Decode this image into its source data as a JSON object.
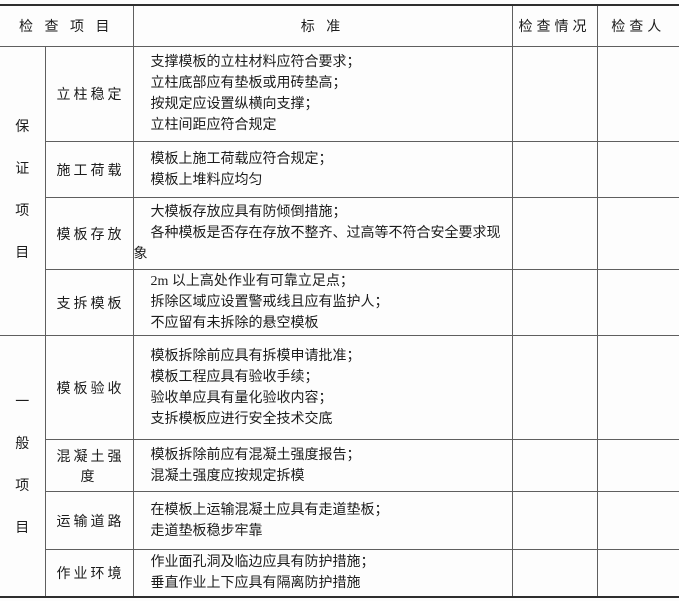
{
  "table": {
    "headers": {
      "item": "检 查 项 目",
      "standard": "标 准",
      "status": "检查情况",
      "inspector": "检查人"
    },
    "sections": [
      {
        "group": "保证项目",
        "rows": [
          {
            "item": "立柱稳定",
            "standards": [
              "支撑模板的立柱材料应符合要求；",
              "立柱底部应有垫板或用砖垫高；",
              "按规定应设置纵横向支撑；",
              "立柱间距应符合规定"
            ]
          },
          {
            "item": "施工荷载",
            "standards": [
              "模板上施工荷载应符合规定；",
              "模板上堆料应均匀"
            ]
          },
          {
            "item": "模板存放",
            "standards": [
              "大模板存放应具有防倾倒措施；",
              "各种模板是否存在存放不整齐、过高等不符合安全要求现象"
            ]
          },
          {
            "item": "支拆模板",
            "standards": [
              "2m 以上高处作业有可靠立足点；",
              "拆除区域应设置警戒线且应有监护人；",
              "不应留有未拆除的悬空模板"
            ]
          }
        ]
      },
      {
        "group": "一般项目",
        "rows": [
          {
            "item": "模板验收",
            "standards": [
              "模板拆除前应具有拆模申请批准；",
              "模板工程应具有验收手续；",
              "验收单应具有量化验收内容；",
              "支拆模板应进行安全技术交底"
            ]
          },
          {
            "item": "混凝土强度",
            "standards": [
              "模板拆除前应有混凝土强度报告；",
              "混凝土强度应按规定拆模"
            ]
          },
          {
            "item": "运输道路",
            "standards": [
              "在模板上运输混凝土应具有走道垫板；",
              "走道垫板稳步牢靠"
            ]
          },
          {
            "item": "作业环境",
            "standards": [
              "作业面孔洞及临边应具有防护措施；",
              "垂直作业上下应具有隔离防护措施"
            ]
          }
        ]
      }
    ]
  }
}
